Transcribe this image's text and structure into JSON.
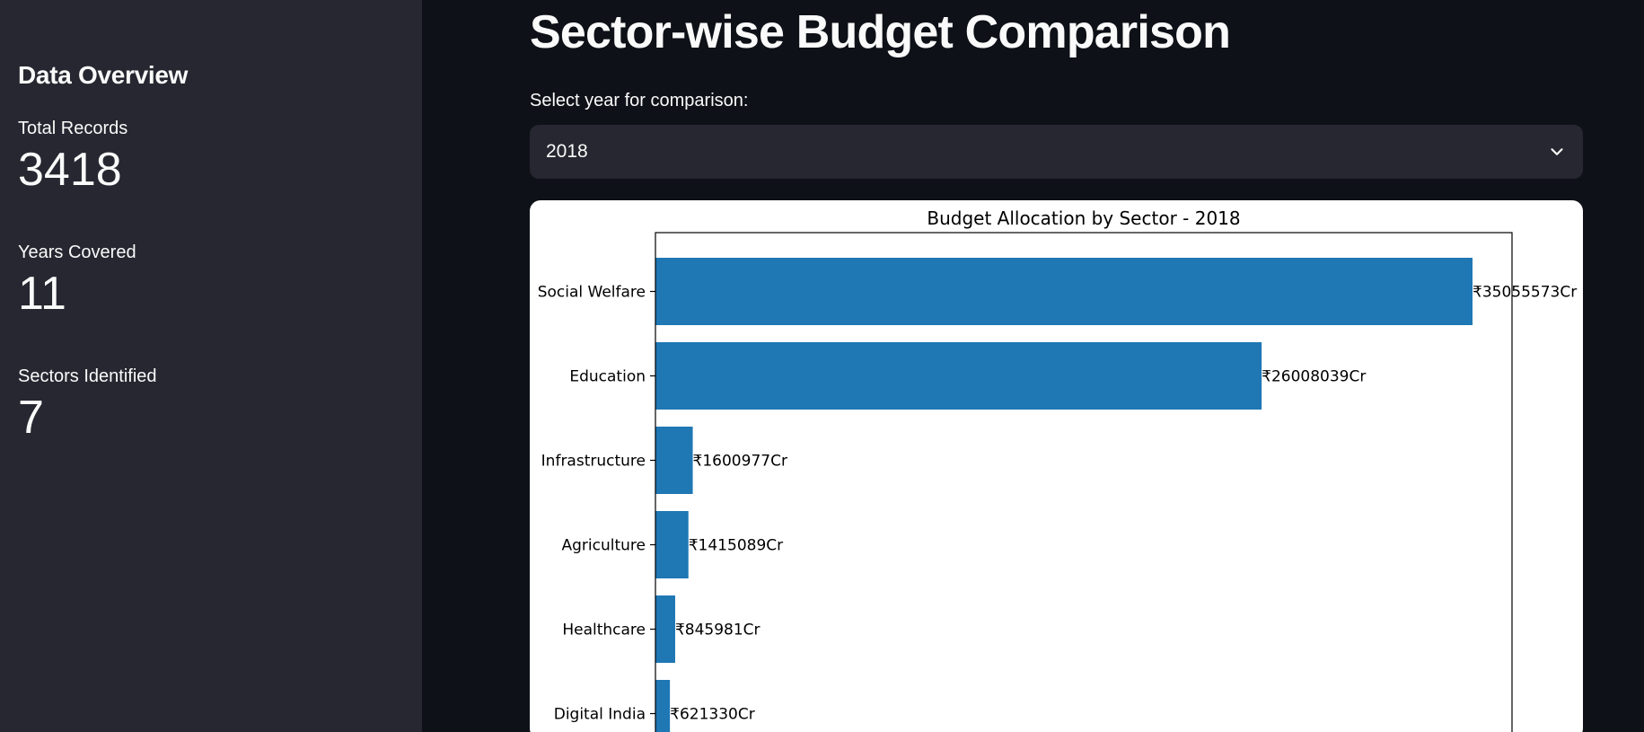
{
  "sidebar": {
    "title": "Data Overview",
    "metrics": [
      {
        "label": "Total Records",
        "value": "3418"
      },
      {
        "label": "Years Covered",
        "value": "11"
      },
      {
        "label": "Sectors Identified",
        "value": "7"
      }
    ]
  },
  "main": {
    "title": "Sector-wise Budget Comparison",
    "select": {
      "label": "Select year for comparison:",
      "value": "2018"
    }
  },
  "colors": {
    "bar": "#1f77b4",
    "background": "#0e1117",
    "sidebar": "#262730"
  },
  "chart_data": {
    "type": "bar",
    "orientation": "horizontal",
    "title": "Budget Allocation by Sector - 2018",
    "categories": [
      "Social Welfare",
      "Education",
      "Infrastructure",
      "Agriculture",
      "Healthcare",
      "Digital India"
    ],
    "values": [
      35055573,
      26008039,
      1600977,
      1415089,
      845981,
      621330
    ],
    "data_labels": [
      "₹35055573Cr",
      "₹26008039Cr",
      "₹1600977Cr",
      "₹1415089Cr",
      "₹845981Cr",
      "₹621330Cr"
    ],
    "xlim": [
      0,
      36750000
    ],
    "grid": false
  }
}
